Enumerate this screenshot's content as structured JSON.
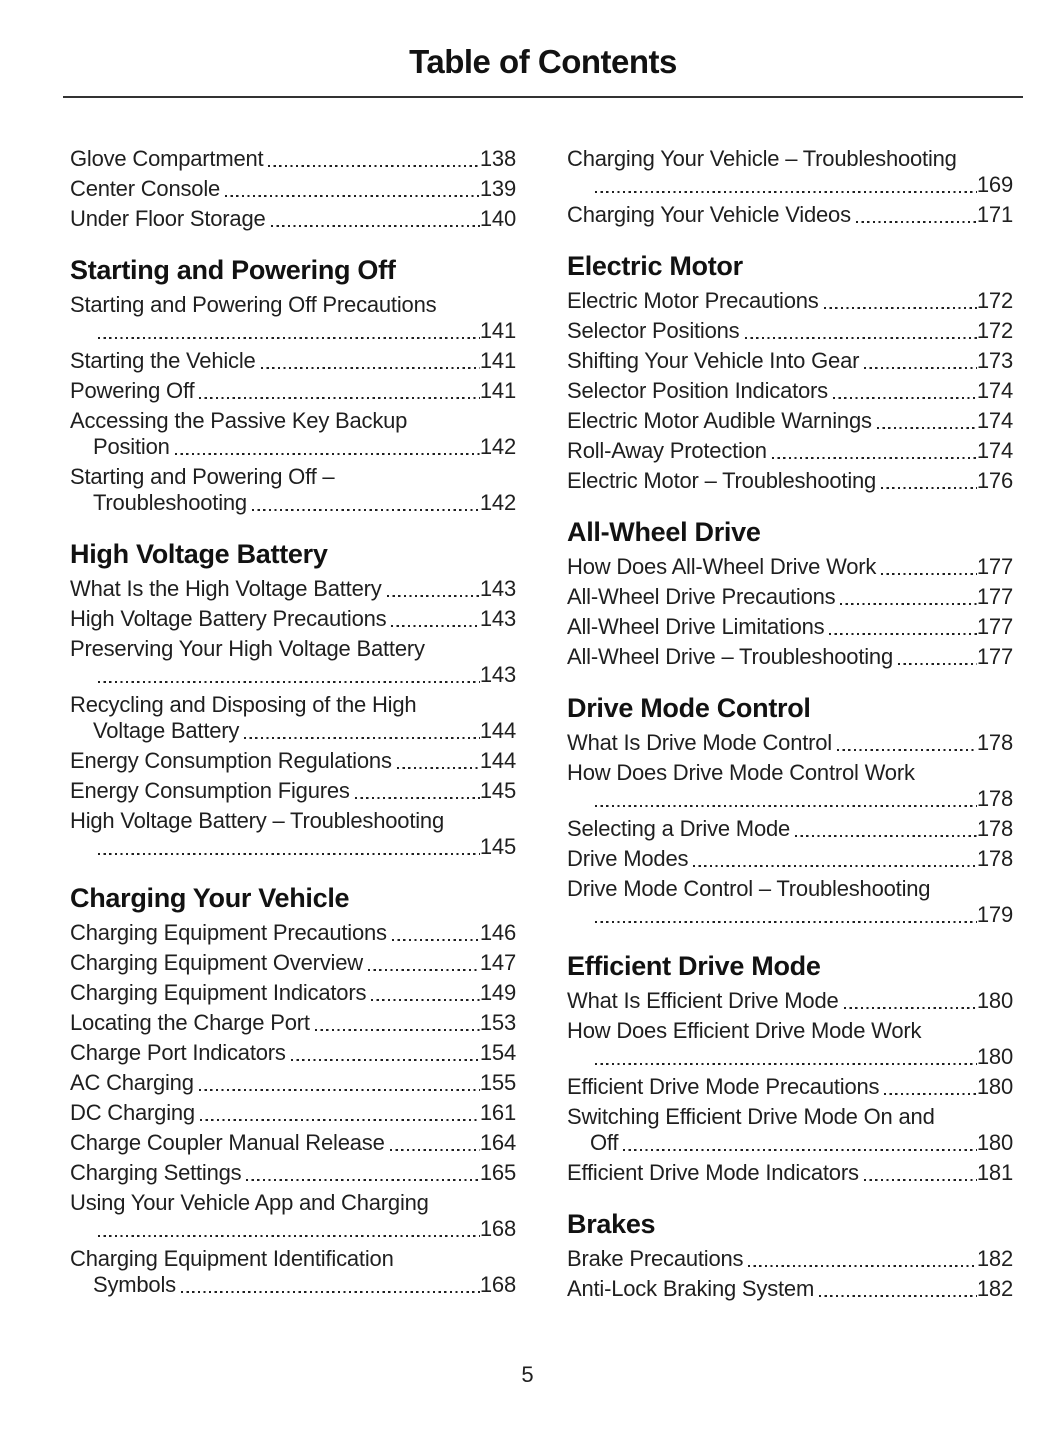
{
  "header": {
    "title": "Table of Contents"
  },
  "footer": {
    "page_number": "5"
  },
  "columns": [
    {
      "blocks": [
        {
          "heading": null,
          "entries": [
            {
              "title": "Glove Compartment",
              "page": "138"
            },
            {
              "title": "Center Console",
              "page": "139"
            },
            {
              "title": "Under Floor Storage",
              "page": "140"
            }
          ]
        },
        {
          "heading": "Starting and Powering Off",
          "entries": [
            {
              "title": "Starting and Powering Off Precautions",
              "wrap": "",
              "page": "141"
            },
            {
              "title": "Starting the Vehicle",
              "page": "141"
            },
            {
              "title": "Powering Off",
              "page": "141"
            },
            {
              "title": "Accessing the Passive Key Backup",
              "wrap": "Position",
              "page": "142"
            },
            {
              "title": "Starting and Powering Off –",
              "wrap": "Troubleshooting",
              "page": "142"
            }
          ]
        },
        {
          "heading": "High Voltage Battery",
          "entries": [
            {
              "title": "What Is the High Voltage Battery",
              "page": "143"
            },
            {
              "title": "High Voltage Battery Precautions",
              "page": "143"
            },
            {
              "title": "Preserving Your High Voltage Battery",
              "wrap": "",
              "page": "143"
            },
            {
              "title": "Recycling and Disposing of the High",
              "wrap": "Voltage Battery",
              "page": "144"
            },
            {
              "title": "Energy Consumption Regulations",
              "page": "144"
            },
            {
              "title": "Energy Consumption Figures",
              "page": "145"
            },
            {
              "title": "High Voltage Battery – Troubleshooting",
              "wrap": "",
              "page": "145"
            }
          ]
        },
        {
          "heading": "Charging Your Vehicle",
          "entries": [
            {
              "title": "Charging Equipment Precautions",
              "page": "146"
            },
            {
              "title": "Charging Equipment Overview",
              "page": "147"
            },
            {
              "title": "Charging Equipment Indicators",
              "page": "149"
            },
            {
              "title": "Locating the Charge Port",
              "page": "153"
            },
            {
              "title": "Charge Port Indicators",
              "page": "154"
            },
            {
              "title": "AC Charging",
              "page": "155"
            },
            {
              "title": "DC Charging",
              "page": "161"
            },
            {
              "title": "Charge Coupler Manual Release",
              "page": "164"
            },
            {
              "title": "Charging Settings",
              "page": "165"
            },
            {
              "title": "Using Your Vehicle App and Charging",
              "wrap": "",
              "page": "168"
            },
            {
              "title": "Charging Equipment Identification",
              "wrap": "Symbols",
              "page": "168"
            }
          ]
        }
      ]
    },
    {
      "blocks": [
        {
          "heading": null,
          "entries": [
            {
              "title": "Charging Your Vehicle – Troubleshooting",
              "wrap": "",
              "page": "169"
            },
            {
              "title": "Charging Your Vehicle Videos",
              "page": "171"
            }
          ]
        },
        {
          "heading": "Electric Motor",
          "entries": [
            {
              "title": "Electric Motor Precautions",
              "page": "172"
            },
            {
              "title": "Selector Positions",
              "page": "172"
            },
            {
              "title": "Shifting Your Vehicle Into Gear",
              "page": "173"
            },
            {
              "title": "Selector Position Indicators",
              "page": "174"
            },
            {
              "title": "Electric Motor Audible Warnings",
              "page": "174"
            },
            {
              "title": "Roll-Away Protection",
              "page": "174"
            },
            {
              "title": "Electric Motor – Troubleshooting",
              "page": "176"
            }
          ]
        },
        {
          "heading": "All-Wheel Drive",
          "entries": [
            {
              "title": "How Does All-Wheel Drive Work",
              "page": "177"
            },
            {
              "title": "All-Wheel Drive Precautions",
              "page": "177"
            },
            {
              "title": "All-Wheel Drive Limitations",
              "page": "177"
            },
            {
              "title": "All-Wheel Drive – Troubleshooting",
              "page": "177"
            }
          ]
        },
        {
          "heading": "Drive Mode Control",
          "entries": [
            {
              "title": "What Is Drive Mode Control",
              "page": "178"
            },
            {
              "title": "How Does Drive Mode Control Work",
              "wrap": "",
              "page": "178"
            },
            {
              "title": "Selecting a Drive Mode",
              "page": "178"
            },
            {
              "title": "Drive Modes",
              "page": "178"
            },
            {
              "title": "Drive Mode Control – Troubleshooting",
              "wrap": "",
              "page": "179"
            }
          ]
        },
        {
          "heading": "Efficient Drive Mode",
          "entries": [
            {
              "title": "What Is Efficient Drive Mode",
              "page": "180"
            },
            {
              "title": "How Does Efficient Drive Mode Work",
              "wrap": "",
              "page": "180"
            },
            {
              "title": "Efficient Drive Mode Precautions",
              "page": "180"
            },
            {
              "title": "Switching Efficient Drive Mode On and",
              "wrap": "Off",
              "page": "180"
            },
            {
              "title": "Efficient Drive Mode Indicators",
              "page": "181"
            }
          ]
        },
        {
          "heading": "Brakes",
          "entries": [
            {
              "title": "Brake Precautions",
              "page": "182"
            },
            {
              "title": "Anti-Lock Braking System",
              "page": "182"
            }
          ]
        }
      ]
    }
  ]
}
